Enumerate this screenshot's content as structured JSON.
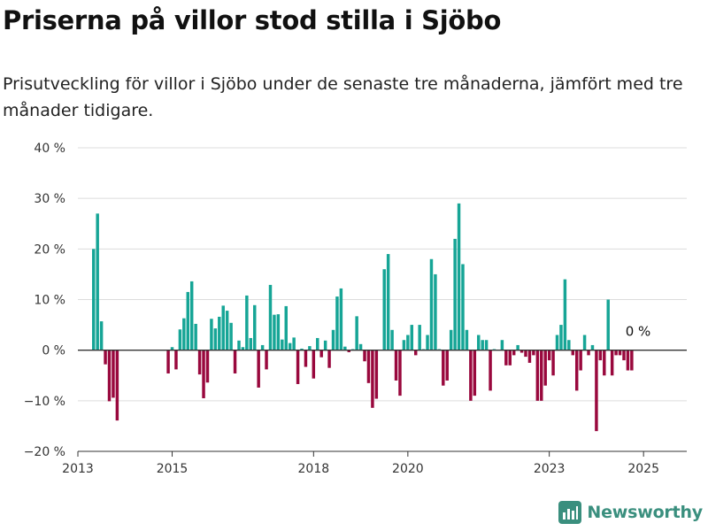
{
  "header": {
    "title": "Priserna på villor stod stilla i Sjöbo",
    "subtitle": "Prisutveckling för villor i Sjöbo under de senaste tre månaderna, jämfört med tre månader tidigare."
  },
  "brand": {
    "name": "Newsworthy",
    "icon": "newsworthy-logo-icon",
    "color": "#3a8f7e"
  },
  "chart_data": {
    "type": "bar",
    "title": "",
    "xlabel": "",
    "ylabel": "",
    "ylim": [
      -20,
      40
    ],
    "yticks": [
      -20,
      -10,
      0,
      10,
      20,
      30,
      40
    ],
    "ytick_labels": [
      "−20 %",
      "−10 %",
      "0 %",
      "10 %",
      "20 %",
      "30 %",
      "40 %"
    ],
    "xlim": [
      "2013-01",
      "2025-12"
    ],
    "xticks": [
      "2013-01",
      "2015-01",
      "2018-01",
      "2020-01",
      "2023-01",
      "2025-01"
    ],
    "xtick_labels": [
      "2013",
      "2015",
      "2018",
      "2020",
      "2023",
      "2025"
    ],
    "grid": true,
    "positive_color": "#16a596",
    "negative_color": "#99083d",
    "annotations": [
      {
        "text": "0 %",
        "x": "2024-12",
        "y": 0
      }
    ],
    "series": [
      {
        "points": [
          {
            "x": "2013-05",
            "y": 20
          },
          {
            "x": "2013-06",
            "y": 27
          },
          {
            "x": "2013-07",
            "y": 5.7
          },
          {
            "x": "2013-08",
            "y": -2.8
          },
          {
            "x": "2013-09",
            "y": -10.1
          },
          {
            "x": "2013-10",
            "y": -9.4
          },
          {
            "x": "2013-11",
            "y": -13.9
          },
          {
            "x": "2014-12",
            "y": -4.6
          },
          {
            "x": "2015-01",
            "y": 0.6
          },
          {
            "x": "2015-02",
            "y": -3.8
          },
          {
            "x": "2015-03",
            "y": 4.1
          },
          {
            "x": "2015-04",
            "y": 6.3
          },
          {
            "x": "2015-05",
            "y": 11.5
          },
          {
            "x": "2015-06",
            "y": 13.6
          },
          {
            "x": "2015-07",
            "y": 5.2
          },
          {
            "x": "2015-08",
            "y": -4.8
          },
          {
            "x": "2015-09",
            "y": -9.5
          },
          {
            "x": "2015-10",
            "y": -6.4
          },
          {
            "x": "2015-11",
            "y": 6.2
          },
          {
            "x": "2015-12",
            "y": 4.3
          },
          {
            "x": "2016-01",
            "y": 6.6
          },
          {
            "x": "2016-02",
            "y": 8.8
          },
          {
            "x": "2016-03",
            "y": 7.8
          },
          {
            "x": "2016-04",
            "y": 5.4
          },
          {
            "x": "2016-05",
            "y": -4.6
          },
          {
            "x": "2016-06",
            "y": 1.9
          },
          {
            "x": "2016-07",
            "y": 0.6
          },
          {
            "x": "2016-08",
            "y": 10.8
          },
          {
            "x": "2016-09",
            "y": 2.4
          },
          {
            "x": "2016-10",
            "y": 8.9
          },
          {
            "x": "2016-11",
            "y": -7.4
          },
          {
            "x": "2016-12",
            "y": 1
          },
          {
            "x": "2017-01",
            "y": -3.8
          },
          {
            "x": "2017-02",
            "y": 12.9
          },
          {
            "x": "2017-03",
            "y": 7
          },
          {
            "x": "2017-04",
            "y": 7.1
          },
          {
            "x": "2017-05",
            "y": 2.1
          },
          {
            "x": "2017-06",
            "y": 8.7
          },
          {
            "x": "2017-07",
            "y": 1.4
          },
          {
            "x": "2017-08",
            "y": 2.5
          },
          {
            "x": "2017-09",
            "y": -6.7
          },
          {
            "x": "2017-10",
            "y": 0.3
          },
          {
            "x": "2017-11",
            "y": -3.3
          },
          {
            "x": "2017-12",
            "y": 0.8
          },
          {
            "x": "2018-01",
            "y": -5.6
          },
          {
            "x": "2018-02",
            "y": 2.4
          },
          {
            "x": "2018-03",
            "y": -1.4
          },
          {
            "x": "2018-04",
            "y": 1.9
          },
          {
            "x": "2018-05",
            "y": -3.5
          },
          {
            "x": "2018-06",
            "y": 4
          },
          {
            "x": "2018-07",
            "y": 10.6
          },
          {
            "x": "2018-08",
            "y": 12.2
          },
          {
            "x": "2018-09",
            "y": 0.7
          },
          {
            "x": "2018-10",
            "y": -0.4
          },
          {
            "x": "2018-11",
            "y": 0.2
          },
          {
            "x": "2018-12",
            "y": 6.7
          },
          {
            "x": "2019-01",
            "y": 1.2
          },
          {
            "x": "2019-02",
            "y": -2.2
          },
          {
            "x": "2019-03",
            "y": -6.5
          },
          {
            "x": "2019-04",
            "y": -11.4
          },
          {
            "x": "2019-05",
            "y": -9.6
          },
          {
            "x": "2019-06",
            "y": 0.1
          },
          {
            "x": "2019-07",
            "y": 16
          },
          {
            "x": "2019-08",
            "y": 19
          },
          {
            "x": "2019-09",
            "y": 4
          },
          {
            "x": "2019-10",
            "y": -6
          },
          {
            "x": "2019-11",
            "y": -9
          },
          {
            "x": "2019-12",
            "y": 2
          },
          {
            "x": "2020-01",
            "y": 3
          },
          {
            "x": "2020-02",
            "y": 5
          },
          {
            "x": "2020-03",
            "y": -1
          },
          {
            "x": "2020-04",
            "y": 5
          },
          {
            "x": "2020-05",
            "y": 0.2
          },
          {
            "x": "2020-06",
            "y": 3
          },
          {
            "x": "2020-07",
            "y": 18
          },
          {
            "x": "2020-08",
            "y": 15
          },
          {
            "x": "2020-09",
            "y": 0.2
          },
          {
            "x": "2020-10",
            "y": -7
          },
          {
            "x": "2020-11",
            "y": -6
          },
          {
            "x": "2020-12",
            "y": 4
          },
          {
            "x": "2021-01",
            "y": 22
          },
          {
            "x": "2021-02",
            "y": 29
          },
          {
            "x": "2021-03",
            "y": 17
          },
          {
            "x": "2021-04",
            "y": 4
          },
          {
            "x": "2021-05",
            "y": -10
          },
          {
            "x": "2021-06",
            "y": -9
          },
          {
            "x": "2021-07",
            "y": 3
          },
          {
            "x": "2021-08",
            "y": 2
          },
          {
            "x": "2021-09",
            "y": 2
          },
          {
            "x": "2021-10",
            "y": -8
          },
          {
            "x": "2021-11",
            "y": 0.2
          },
          {
            "x": "2022-01",
            "y": 2
          },
          {
            "x": "2022-02",
            "y": -3
          },
          {
            "x": "2022-03",
            "y": -3
          },
          {
            "x": "2022-04",
            "y": -1
          },
          {
            "x": "2022-05",
            "y": 1
          },
          {
            "x": "2022-06",
            "y": -0.5
          },
          {
            "x": "2022-07",
            "y": -1.3
          },
          {
            "x": "2022-08",
            "y": -2.5
          },
          {
            "x": "2022-09",
            "y": -1
          },
          {
            "x": "2022-10",
            "y": -10
          },
          {
            "x": "2022-11",
            "y": -10
          },
          {
            "x": "2022-12",
            "y": -7
          },
          {
            "x": "2023-01",
            "y": -2
          },
          {
            "x": "2023-02",
            "y": -5
          },
          {
            "x": "2023-03",
            "y": 3
          },
          {
            "x": "2023-04",
            "y": 5
          },
          {
            "x": "2023-05",
            "y": 14
          },
          {
            "x": "2023-06",
            "y": 2
          },
          {
            "x": "2023-07",
            "y": -1
          },
          {
            "x": "2023-08",
            "y": -8
          },
          {
            "x": "2023-09",
            "y": -4
          },
          {
            "x": "2023-10",
            "y": 3
          },
          {
            "x": "2023-11",
            "y": -1
          },
          {
            "x": "2023-12",
            "y": 1
          },
          {
            "x": "2024-01",
            "y": -16
          },
          {
            "x": "2024-02",
            "y": -2
          },
          {
            "x": "2024-03",
            "y": -5
          },
          {
            "x": "2024-04",
            "y": 10
          },
          {
            "x": "2024-05",
            "y": -5
          },
          {
            "x": "2024-06",
            "y": -1
          },
          {
            "x": "2024-07",
            "y": -1
          },
          {
            "x": "2024-08",
            "y": -2
          },
          {
            "x": "2024-09",
            "y": -4
          },
          {
            "x": "2024-10",
            "y": -4
          },
          {
            "x": "2024-11",
            "y": 0
          }
        ]
      }
    ]
  }
}
